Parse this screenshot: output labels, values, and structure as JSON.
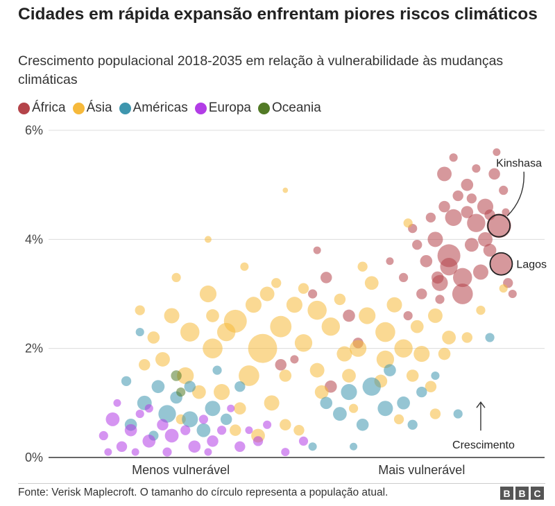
{
  "header": {
    "title": "Cidades em rápida expansão enfrentam piores riscos climáticos",
    "subtitle": "Crescimento populacional 2018-2035 em relação à vulnerabilidade às mudanças climáticas"
  },
  "legend": [
    {
      "label": "África",
      "color": "#b4444a"
    },
    {
      "label": "Ásia",
      "color": "#f6b93b"
    },
    {
      "label": "Américas",
      "color": "#3e96ae"
    },
    {
      "label": "Europa",
      "color": "#b23de6"
    },
    {
      "label": "Oceania",
      "color": "#527a26"
    }
  ],
  "chart_data": {
    "type": "scatter",
    "title": "Cidades em rápida expansão enfrentam piores riscos climáticos",
    "subtitle": "Crescimento populacional 2018-2035 em relação à vulnerabilidade às mudanças climáticas",
    "y_ticks": [
      "0%",
      "2%",
      "4%",
      "6%"
    ],
    "ylim": [
      0,
      6
    ],
    "xlim": [
      0,
      10
    ],
    "x_labels": [
      {
        "label": "Menos vulnerável",
        "x": 2.3
      },
      {
        "label": "Mais vulnerável",
        "x": 7.6
      }
    ],
    "grid": true,
    "legend_position": "top-left",
    "annotations": [
      {
        "label": "Kinshasa",
        "x": 9.3,
        "y": 4.25
      },
      {
        "label": "Lagos",
        "x": 9.35,
        "y": 3.55
      },
      {
        "label": "Crescimento",
        "x": 8.9,
        "y": 0.9
      }
    ],
    "series": [
      {
        "name": "África",
        "region": "africa",
        "points": [
          [
            9.3,
            4.25,
            3.2
          ],
          [
            9.35,
            3.55,
            3.0
          ],
          [
            8.2,
            3.7,
            3.0
          ],
          [
            7.9,
            4.0,
            2.0
          ],
          [
            8.5,
            3.3,
            2.5
          ],
          [
            8.8,
            4.3,
            2.4
          ],
          [
            9.0,
            4.6,
            2.1
          ],
          [
            8.1,
            5.2,
            1.9
          ],
          [
            8.6,
            5.0,
            1.6
          ],
          [
            9.2,
            5.2,
            1.5
          ],
          [
            8.3,
            4.4,
            2.2
          ],
          [
            8.7,
            3.9,
            1.8
          ],
          [
            9.1,
            3.8,
            1.7
          ],
          [
            8.0,
            3.2,
            2.1
          ],
          [
            7.7,
            3.6,
            1.6
          ],
          [
            8.4,
            4.8,
            1.4
          ],
          [
            8.9,
            3.4,
            2.0
          ],
          [
            8.3,
            5.5,
            1.1
          ],
          [
            9.25,
            5.6,
            1.0
          ],
          [
            7.5,
            3.9,
            1.3
          ],
          [
            7.2,
            3.3,
            1.2
          ],
          [
            6.9,
            3.6,
            1.0
          ],
          [
            8.5,
            3.0,
            2.7
          ],
          [
            9.0,
            4.0,
            1.9
          ],
          [
            8.1,
            4.6,
            1.5
          ],
          [
            7.8,
            4.4,
            1.3
          ],
          [
            9.4,
            4.9,
            1.2
          ],
          [
            8.6,
            4.5,
            1.6
          ],
          [
            7.6,
            3.0,
            1.4
          ],
          [
            9.5,
            3.2,
            1.3
          ],
          [
            9.6,
            3.0,
            1.1
          ],
          [
            8.0,
            2.9,
            1.2
          ],
          [
            6.2,
            2.1,
            1.4
          ],
          [
            6.0,
            2.6,
            1.6
          ],
          [
            5.5,
            3.3,
            1.5
          ],
          [
            5.2,
            3.0,
            1.2
          ],
          [
            5.3,
            3.8,
            1.0
          ],
          [
            5.6,
            1.3,
            1.6
          ],
          [
            4.8,
            1.8,
            1.1
          ],
          [
            4.5,
            1.7,
            1.5
          ],
          [
            9.1,
            4.45,
            1.4
          ],
          [
            8.8,
            5.3,
            1.1
          ],
          [
            7.4,
            4.2,
            1.2
          ],
          [
            9.45,
            4.5,
            1.0
          ],
          [
            8.2,
            3.5,
            2.3
          ],
          [
            7.95,
            3.3,
            1.6
          ],
          [
            8.7,
            4.75,
            1.3
          ],
          [
            7.3,
            2.6,
            1.2
          ]
        ]
      },
      {
        "name": "Ásia",
        "region": "asia",
        "points": [
          [
            4.1,
            2.0,
            3.8
          ],
          [
            3.5,
            2.5,
            3.0
          ],
          [
            3.0,
            2.0,
            2.6
          ],
          [
            4.5,
            2.4,
            2.8
          ],
          [
            2.5,
            2.3,
            2.5
          ],
          [
            3.8,
            1.5,
            2.7
          ],
          [
            2.9,
            3.0,
            2.2
          ],
          [
            5.0,
            2.1,
            2.3
          ],
          [
            4.8,
            2.8,
            2.1
          ],
          [
            2.1,
            2.6,
            2.0
          ],
          [
            3.2,
            1.2,
            2.1
          ],
          [
            4.3,
            1.0,
            2.0
          ],
          [
            1.9,
            1.8,
            1.9
          ],
          [
            5.6,
            2.4,
            2.4
          ],
          [
            6.2,
            2.0,
            2.2
          ],
          [
            6.8,
            2.3,
            2.6
          ],
          [
            7.2,
            2.0,
            2.4
          ],
          [
            7.6,
            1.9,
            2.1
          ],
          [
            7.0,
            2.8,
            2.0
          ],
          [
            6.5,
            3.2,
            1.8
          ],
          [
            7.9,
            2.6,
            1.9
          ],
          [
            8.2,
            2.2,
            1.8
          ],
          [
            6.0,
            1.5,
            1.8
          ],
          [
            5.3,
            1.6,
            1.9
          ],
          [
            4.0,
            0.4,
            1.8
          ],
          [
            4.6,
            0.6,
            1.5
          ],
          [
            3.6,
            0.9,
            1.6
          ],
          [
            5.8,
            2.9,
            1.5
          ],
          [
            6.7,
            1.4,
            1.7
          ],
          [
            7.4,
            1.5,
            1.6
          ],
          [
            7.8,
            1.3,
            1.5
          ],
          [
            2.7,
            1.2,
            1.8
          ],
          [
            1.5,
            1.7,
            1.5
          ],
          [
            1.4,
            2.7,
            1.3
          ],
          [
            2.2,
            3.3,
            1.2
          ],
          [
            3.7,
            3.5,
            1.1
          ],
          [
            4.4,
            3.2,
            1.3
          ],
          [
            5.3,
            2.7,
            2.5
          ],
          [
            6.4,
            2.6,
            2.2
          ],
          [
            4.6,
            1.5,
            1.6
          ],
          [
            3.3,
            2.3,
            2.4
          ],
          [
            2.4,
            1.5,
            2.2
          ],
          [
            7.9,
            0.8,
            1.4
          ],
          [
            7.1,
            0.7,
            1.3
          ],
          [
            6.1,
            0.9,
            1.2
          ],
          [
            4.6,
            4.9,
            0.7
          ],
          [
            2.9,
            4.0,
            0.9
          ],
          [
            7.3,
            4.3,
            1.2
          ],
          [
            8.6,
            2.2,
            1.4
          ],
          [
            8.9,
            2.7,
            1.2
          ],
          [
            9.4,
            3.1,
            1.1
          ],
          [
            3.9,
            2.8,
            2.1
          ],
          [
            5.9,
            1.9,
            2.0
          ],
          [
            6.8,
            1.8,
            2.3
          ],
          [
            3.0,
            2.6,
            1.7
          ],
          [
            1.7,
            2.2,
            1.6
          ],
          [
            4.2,
            3.0,
            1.9
          ],
          [
            5.0,
            3.1,
            1.4
          ],
          [
            2.3,
            0.7,
            1.3
          ],
          [
            3.5,
            0.5,
            1.5
          ],
          [
            6.3,
            3.5,
            1.3
          ],
          [
            7.5,
            2.4,
            1.7
          ],
          [
            8.1,
            1.9,
            1.6
          ],
          [
            4.9,
            0.5,
            1.4
          ],
          [
            5.4,
            1.2,
            1.8
          ]
        ]
      },
      {
        "name": "Américas",
        "region": "americas",
        "points": [
          [
            2.0,
            0.8,
            2.3
          ],
          [
            2.5,
            0.7,
            2.1
          ],
          [
            1.5,
            1.0,
            1.9
          ],
          [
            3.0,
            0.9,
            2.0
          ],
          [
            1.2,
            0.6,
            1.6
          ],
          [
            2.8,
            0.5,
            1.8
          ],
          [
            1.8,
            1.3,
            1.7
          ],
          [
            3.3,
            0.7,
            1.5
          ],
          [
            2.2,
            1.1,
            1.6
          ],
          [
            6.5,
            1.3,
            2.4
          ],
          [
            6.0,
            1.2,
            2.1
          ],
          [
            6.8,
            0.9,
            2.0
          ],
          [
            5.8,
            0.8,
            1.8
          ],
          [
            7.2,
            1.0,
            1.7
          ],
          [
            6.3,
            0.6,
            1.6
          ],
          [
            7.4,
            0.6,
            1.3
          ],
          [
            6.9,
            1.6,
            1.6
          ],
          [
            7.6,
            1.2,
            1.4
          ],
          [
            1.4,
            2.3,
            1.1
          ],
          [
            8.4,
            0.8,
            1.2
          ],
          [
            9.1,
            2.2,
            1.2
          ],
          [
            1.1,
            1.4,
            1.3
          ],
          [
            3.6,
            1.3,
            1.4
          ],
          [
            5.5,
            1.0,
            1.6
          ],
          [
            7.9,
            1.5,
            1.1
          ],
          [
            2.5,
            1.3,
            1.5
          ],
          [
            1.7,
            0.4,
            1.3
          ],
          [
            3.1,
            1.6,
            1.2
          ],
          [
            6.1,
            0.2,
            1.0
          ],
          [
            5.2,
            0.2,
            1.1
          ]
        ]
      },
      {
        "name": "Europa",
        "region": "europa",
        "points": [
          [
            0.8,
            0.7,
            1.8
          ],
          [
            1.2,
            0.5,
            1.6
          ],
          [
            1.6,
            0.3,
            1.7
          ],
          [
            2.1,
            0.4,
            1.8
          ],
          [
            2.6,
            0.2,
            1.6
          ],
          [
            1.0,
            0.2,
            1.4
          ],
          [
            3.0,
            0.3,
            1.5
          ],
          [
            3.6,
            0.2,
            1.4
          ],
          [
            1.9,
            0.6,
            1.5
          ],
          [
            2.4,
            0.5,
            1.3
          ],
          [
            3.2,
            0.5,
            1.2
          ],
          [
            4.0,
            0.3,
            1.3
          ],
          [
            4.6,
            0.1,
            1.1
          ],
          [
            0.6,
            0.4,
            1.2
          ],
          [
            1.4,
            0.8,
            1.1
          ],
          [
            2.8,
            0.7,
            1.2
          ],
          [
            3.4,
            0.9,
            1.0
          ],
          [
            4.2,
            0.6,
            1.1
          ],
          [
            5.0,
            0.3,
            1.2
          ],
          [
            0.9,
            1.0,
            1.0
          ],
          [
            2.0,
            0.1,
            1.2
          ],
          [
            3.8,
            0.5,
            1.0
          ],
          [
            1.6,
            0.9,
            1.1
          ],
          [
            2.9,
            0.1,
            1.0
          ],
          [
            0.7,
            0.1,
            1.0
          ],
          [
            1.3,
            0.1,
            1.0
          ]
        ]
      },
      {
        "name": "Oceania",
        "region": "oceania",
        "points": [
          [
            2.2,
            1.5,
            1.4
          ],
          [
            2.3,
            1.2,
            1.2
          ]
        ]
      }
    ]
  },
  "footer": {
    "source": "Fonte: Verisk Maplecroft. O tamanho do círculo representa a população atual.",
    "logo": [
      "B",
      "B",
      "C"
    ]
  }
}
